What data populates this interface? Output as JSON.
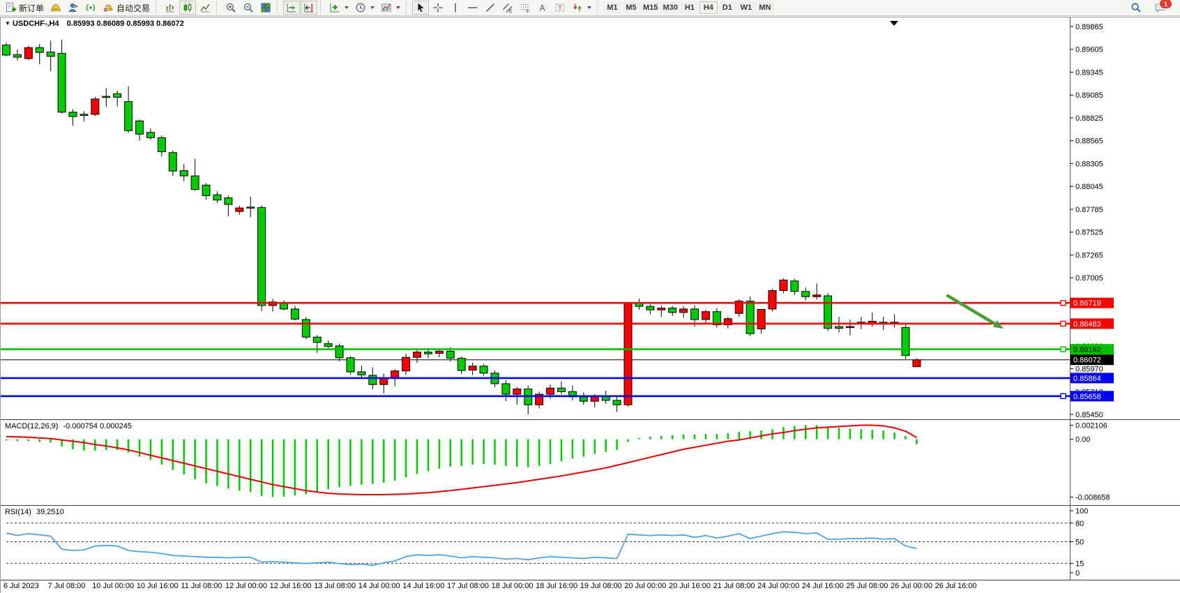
{
  "toolbar": {
    "new_order_label": "新订单",
    "auto_trading_label": "自动交易",
    "timeframes": [
      "M1",
      "M5",
      "M15",
      "M30",
      "H1",
      "H4",
      "D1",
      "W1",
      "MN"
    ],
    "active_timeframe": "H4",
    "notification_badge": "1",
    "icons": [
      "new-order-icon",
      "metaeditor-icon",
      "community-icon",
      "signals-icon",
      "autotrading-icon",
      "bar-chart-icon",
      "candlestick-chart-icon",
      "line-chart-icon",
      "zoom-in-icon",
      "zoom-out-icon",
      "tile-windows-icon",
      "auto-scroll-icon",
      "chart-shift-icon",
      "indicators-icon",
      "periods-icon",
      "templates-icon",
      "cursor-icon",
      "crosshair-icon",
      "vertical-line-icon",
      "horizontal-line-icon",
      "trendline-icon",
      "equidistant-channel-icon",
      "fibonacci-icon",
      "text-icon",
      "text-label-icon",
      "arrows-icon",
      "search-icon",
      "chat-icon",
      "shift-marker-icon",
      "arrow-annotation"
    ]
  },
  "chart": {
    "symbol_period": "USDCHF-,H4",
    "ohlc": "0.85993 0.86089 0.85993 0.86072"
  },
  "chart_data": {
    "type": "candlestick",
    "symbol": "USDCHF-",
    "timeframe": "H4",
    "title": "USDCHF-,H4  0.85993 0.86089 0.85993 0.86072",
    "x_labels": [
      "6 Jul 2023",
      "7 Jul 08:00",
      "10 Jul 00:00",
      "10 Jul 16:00",
      "11 Jul 08:00",
      "12 Jul 00:00",
      "12 Jul 16:00",
      "13 Jul 08:00",
      "14 Jul 00:00",
      "14 Jul 16:00",
      "17 Jul 08:00",
      "18 Jul 00:00",
      "18 Jul 16:00",
      "19 Jul 08:00",
      "20 Jul 00:00",
      "20 Jul 16:00",
      "21 Jul 08:00",
      "24 Jul 00:00",
      "24 Jul 16:00",
      "25 Jul 08:00",
      "26 Jul 00:00",
      "26 Jul 16:00"
    ],
    "price_axis_ticks": [
      "0.89865",
      "0.89605",
      "0.89345",
      "0.89085",
      "0.88825",
      "0.88565",
      "0.88305",
      "0.88045",
      "0.87785",
      "0.87525",
      "0.87265",
      "0.87005",
      "0.86745",
      "0.86485",
      "0.86230",
      "0.85970",
      "0.85710",
      "0.85450"
    ],
    "ylim": [
      0.8545,
      0.89865
    ],
    "candles": [
      [
        0.89655,
        0.8968,
        0.89525,
        0.8954
      ],
      [
        0.89545,
        0.89605,
        0.8948,
        0.89515
      ],
      [
        0.895,
        0.89645,
        0.89485,
        0.89625
      ],
      [
        0.89625,
        0.89665,
        0.89435,
        0.8957
      ],
      [
        0.89575,
        0.89705,
        0.89355,
        0.89525
      ],
      [
        0.8956,
        0.89715,
        0.88875,
        0.8889
      ],
      [
        0.8889,
        0.88925,
        0.88735,
        0.8884
      ],
      [
        0.88865,
        0.889,
        0.88785,
        0.8886
      ],
      [
        0.88865,
        0.89065,
        0.88845,
        0.8904
      ],
      [
        0.8907,
        0.89165,
        0.8895,
        0.89065
      ],
      [
        0.891,
        0.89135,
        0.88955,
        0.8906
      ],
      [
        0.8901,
        0.89185,
        0.88655,
        0.8868
      ],
      [
        0.8879,
        0.88805,
        0.88565,
        0.8864
      ],
      [
        0.8866,
        0.88705,
        0.88575,
        0.886
      ],
      [
        0.886,
        0.88625,
        0.88385,
        0.8844
      ],
      [
        0.8843,
        0.88455,
        0.88165,
        0.8822
      ],
      [
        0.88225,
        0.883,
        0.88105,
        0.88165
      ],
      [
        0.88165,
        0.8836,
        0.87995,
        0.8801
      ],
      [
        0.8806,
        0.88085,
        0.87895,
        0.8794
      ],
      [
        0.8795,
        0.8799,
        0.87855,
        0.8789
      ],
      [
        0.87915,
        0.8794,
        0.87705,
        0.8784
      ],
      [
        0.8776,
        0.87825,
        0.87725,
        0.878
      ],
      [
        0.8781,
        0.8793,
        0.87695,
        0.87805
      ],
      [
        0.87805,
        0.8783,
        0.86625,
        0.8669
      ],
      [
        0.8669,
        0.86765,
        0.8662,
        0.8673
      ],
      [
        0.86725,
        0.8675,
        0.86635,
        0.8665
      ],
      [
        0.8665,
        0.86685,
        0.8652,
        0.86535
      ],
      [
        0.8653,
        0.8656,
        0.86305,
        0.8633
      ],
      [
        0.8633,
        0.8635,
        0.8615,
        0.8627
      ],
      [
        0.86255,
        0.8629,
        0.86205,
        0.86225
      ],
      [
        0.8623,
        0.86255,
        0.86055,
        0.86095
      ],
      [
        0.86095,
        0.86115,
        0.85905,
        0.85935
      ],
      [
        0.85935,
        0.86005,
        0.85855,
        0.859
      ],
      [
        0.85895,
        0.85985,
        0.85735,
        0.8579
      ],
      [
        0.8579,
        0.85915,
        0.8569,
        0.8586
      ],
      [
        0.8586,
        0.85965,
        0.8577,
        0.85945
      ],
      [
        0.85945,
        0.8614,
        0.859,
        0.861
      ],
      [
        0.861,
        0.86185,
        0.86035,
        0.8616
      ],
      [
        0.8616,
        0.86205,
        0.8609,
        0.8614
      ],
      [
        0.86145,
        0.86195,
        0.861,
        0.8617
      ],
      [
        0.8617,
        0.86215,
        0.86055,
        0.8609
      ],
      [
        0.8609,
        0.8611,
        0.8591,
        0.8595
      ],
      [
        0.85955,
        0.8604,
        0.859,
        0.86
      ],
      [
        0.86,
        0.86025,
        0.8589,
        0.8592
      ],
      [
        0.8592,
        0.8595,
        0.8576,
        0.858
      ],
      [
        0.858,
        0.8584,
        0.856,
        0.8568
      ],
      [
        0.8568,
        0.8576,
        0.8556,
        0.8574
      ],
      [
        0.8574,
        0.8578,
        0.8545,
        0.8556
      ],
      [
        0.8556,
        0.8571,
        0.8552,
        0.8568
      ],
      [
        0.8568,
        0.8579,
        0.8563,
        0.8575
      ],
      [
        0.8575,
        0.85825,
        0.8568,
        0.8571
      ],
      [
        0.8571,
        0.8578,
        0.8561,
        0.8565
      ],
      [
        0.8565,
        0.857,
        0.8556,
        0.856
      ],
      [
        0.856,
        0.8568,
        0.8553,
        0.8566
      ],
      [
        0.8566,
        0.8572,
        0.8557,
        0.8561
      ],
      [
        0.8561,
        0.8566,
        0.8548,
        0.8556
      ],
      [
        0.8556,
        0.8673,
        0.8554,
        0.8672
      ],
      [
        0.8672,
        0.86765,
        0.8664,
        0.8668
      ],
      [
        0.8668,
        0.86705,
        0.8659,
        0.8664
      ],
      [
        0.8664,
        0.8669,
        0.8656,
        0.8666
      ],
      [
        0.8666,
        0.86685,
        0.8657,
        0.8661
      ],
      [
        0.8661,
        0.8668,
        0.8655,
        0.8665
      ],
      [
        0.8665,
        0.8669,
        0.8645,
        0.8653
      ],
      [
        0.8653,
        0.8664,
        0.8648,
        0.8662
      ],
      [
        0.8662,
        0.8666,
        0.8644,
        0.8647
      ],
      [
        0.8647,
        0.8656,
        0.8643,
        0.8654
      ],
      [
        0.866,
        0.8676,
        0.8656,
        0.8674
      ],
      [
        0.8674,
        0.8679,
        0.8634,
        0.8637
      ],
      [
        0.86423,
        0.8665,
        0.8637,
        0.86645
      ],
      [
        0.8665,
        0.8688,
        0.8662,
        0.8686
      ],
      [
        0.8686,
        0.87,
        0.8683,
        0.8698
      ],
      [
        0.8697,
        0.86995,
        0.8681,
        0.8685
      ],
      [
        0.8685,
        0.86895,
        0.8675,
        0.8679
      ],
      [
        0.8679,
        0.8694,
        0.8676,
        0.8681
      ],
      [
        0.868,
        0.8683,
        0.864,
        0.8643
      ],
      [
        0.8645,
        0.8656,
        0.8638,
        0.8643
      ],
      [
        0.8644,
        0.8653,
        0.8635,
        0.8645
      ],
      [
        0.8648,
        0.8656,
        0.8642,
        0.865
      ],
      [
        0.8649,
        0.8661,
        0.8645,
        0.8651
      ],
      [
        0.865,
        0.8656,
        0.8641,
        0.8648
      ],
      [
        0.8649,
        0.8659,
        0.8644,
        0.865
      ],
      [
        0.8644,
        0.8647,
        0.8608,
        0.8612
      ],
      [
        0.85993,
        0.86089,
        0.85993,
        0.86072
      ]
    ],
    "levels": [
      {
        "price": 0.86719,
        "label": "0.86719",
        "color": "#FF0000",
        "text": "#FFFFFF",
        "anchor": true
      },
      {
        "price": 0.86483,
        "label": "0.86483",
        "color": "#FF0000",
        "text": "#FFFFFF",
        "anchor": true
      },
      {
        "price": 0.86192,
        "label": "0.86192",
        "color": "#00C000",
        "text": "#000000",
        "anchor": true
      },
      {
        "price": 0.85864,
        "label": "0.85864",
        "color": "#0000FF",
        "text": "#FFFFFF",
        "anchor": false
      },
      {
        "price": 0.85658,
        "label": "0.85658",
        "color": "#0000FF",
        "text": "#FFFFFF",
        "anchor": true
      }
    ],
    "bid": {
      "price": 0.86072,
      "label": "0.86072",
      "color": "#000000",
      "text": "#FFFFFF"
    },
    "colors": {
      "up": "#FF0000",
      "down": "#00CC00",
      "wick": "#000000",
      "macd_hist": "#00CC00",
      "macd_signal": "#E60000",
      "rsi_line": "#4DA3E0"
    },
    "annotations": [
      {
        "type": "arrow",
        "color": "#4C9B2F",
        "direction": "down-right",
        "from_price": 0.868,
        "to_price": 0.8643,
        "note": "bearish arrow pointing toward 0.86483 resistance line"
      }
    ],
    "indicators": {
      "macd": {
        "label": "MACD(12,26,9)",
        "values_text": "-0.000754 0.000245",
        "axis_labels": [
          "0.002106",
          "0.00",
          "-0.008658"
        ],
        "max": 0.002106,
        "min": -0.008658,
        "histogram": [
          -0.0002,
          -0.0003,
          -0.0003,
          -0.0004,
          -0.0005,
          -0.0011,
          -0.0015,
          -0.0017,
          -0.0017,
          -0.0016,
          -0.0016,
          -0.002,
          -0.0026,
          -0.0031,
          -0.0038,
          -0.0046,
          -0.0053,
          -0.006,
          -0.0066,
          -0.007,
          -0.0074,
          -0.0077,
          -0.0079,
          -0.0085,
          -0.008658,
          -0.0086,
          -0.0084,
          -0.0082,
          -0.0079,
          -0.0075,
          -0.0072,
          -0.007,
          -0.0068,
          -0.0067,
          -0.0065,
          -0.0062,
          -0.0057,
          -0.0052,
          -0.0048,
          -0.0044,
          -0.0041,
          -0.004,
          -0.0038,
          -0.0037,
          -0.0038,
          -0.004,
          -0.0041,
          -0.0042,
          -0.004,
          -0.0037,
          -0.0033,
          -0.0029,
          -0.0026,
          -0.0022,
          -0.0019,
          -0.0016,
          -0.0004,
          0.0002,
          0.0004,
          0.0005,
          0.0006,
          0.0007,
          0.0007,
          0.0008,
          0.0008,
          0.0009,
          0.0011,
          0.0012,
          0.0013,
          0.0015,
          0.0018,
          0.002,
          0.0021,
          0.0021,
          0.0019,
          0.0017,
          0.0016,
          0.0015,
          0.0014,
          0.0013,
          0.001,
          0.0005,
          -0.000754
        ],
        "signal": [
          0.0004,
          0.00035,
          0.0003,
          0.0002,
          0.0001,
          -0.0001,
          -0.0003,
          -0.0005,
          -0.0008,
          -0.001,
          -0.0013,
          -0.0016,
          -0.002,
          -0.0024,
          -0.0028,
          -0.0032,
          -0.0036,
          -0.004,
          -0.0044,
          -0.0048,
          -0.0052,
          -0.0056,
          -0.006,
          -0.0064,
          -0.0068,
          -0.0071,
          -0.0074,
          -0.0077,
          -0.0079,
          -0.0081,
          -0.0082,
          -0.00825,
          -0.0083,
          -0.0083,
          -0.0083,
          -0.00825,
          -0.0082,
          -0.0081,
          -0.008,
          -0.00785,
          -0.0077,
          -0.0075,
          -0.0073,
          -0.0071,
          -0.0069,
          -0.0067,
          -0.0065,
          -0.00625,
          -0.006,
          -0.00575,
          -0.0055,
          -0.0052,
          -0.0049,
          -0.0046,
          -0.0043,
          -0.0039,
          -0.0035,
          -0.0031,
          -0.0027,
          -0.0023,
          -0.0019,
          -0.0015,
          -0.0012,
          -0.0009,
          -0.0006,
          -0.0003,
          -0.0001,
          0.0002,
          0.0005,
          0.0008,
          0.001,
          0.0013,
          0.0015,
          0.0017,
          0.0018,
          0.0019,
          0.002,
          0.0021,
          0.0021,
          0.002,
          0.0017,
          0.0012,
          0.000245
        ]
      },
      "rsi": {
        "label": "RSI(14)",
        "value_text": "39.2510",
        "axis_labels": [
          "100",
          "80",
          "50",
          "15",
          "0"
        ],
        "guide_levels": [
          80,
          50,
          15
        ],
        "range": [
          0,
          100
        ],
        "values": [
          64,
          60,
          63,
          61,
          59,
          38,
          36,
          37,
          43,
          44,
          43,
          36,
          34,
          33,
          31,
          28,
          27,
          26,
          25,
          25,
          24,
          25,
          25,
          17,
          18,
          17,
          16,
          15,
          16,
          17,
          15,
          13,
          14,
          12,
          16,
          19,
          26,
          29,
          28,
          29,
          27,
          24,
          26,
          25,
          24,
          22,
          23,
          21,
          24,
          26,
          25,
          24,
          23,
          25,
          24,
          23,
          62,
          61,
          60,
          61,
          60,
          61,
          57,
          60,
          56,
          59,
          63,
          55,
          59,
          63,
          66,
          65,
          63,
          64,
          54,
          54,
          55,
          55,
          56,
          54,
          55,
          43,
          39.25
        ]
      }
    }
  }
}
